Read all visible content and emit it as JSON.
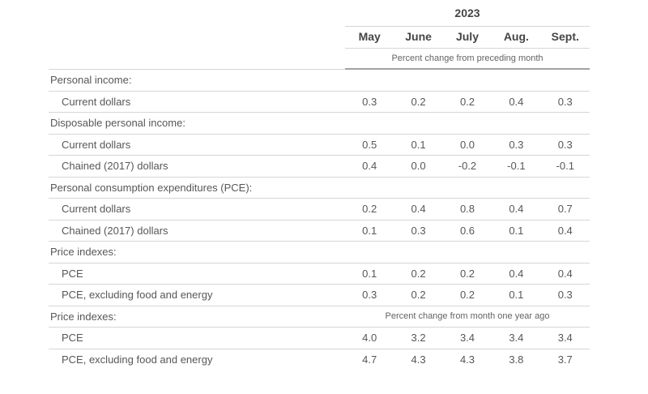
{
  "chart_data": {
    "type": "table",
    "year_header": "2023",
    "columns": [
      "May",
      "June",
      "July",
      "Aug.",
      "Sept."
    ],
    "unit_note_top": "Percent change from preceding month",
    "unit_note_bottom": "Percent change from month one year ago",
    "rows": [
      {
        "type": "category",
        "label": "Personal income:"
      },
      {
        "type": "data",
        "label": "Current dollars",
        "values": [
          "0.3",
          "0.2",
          "0.2",
          "0.4",
          "0.3"
        ]
      },
      {
        "type": "category",
        "label": "Disposable personal income:"
      },
      {
        "type": "data",
        "label": "Current dollars",
        "values": [
          "0.5",
          "0.1",
          "0.0",
          "0.3",
          "0.3"
        ]
      },
      {
        "type": "data",
        "label": "Chained (2017) dollars",
        "values": [
          "0.4",
          "0.0",
          "-0.2",
          "-0.1",
          "-0.1"
        ]
      },
      {
        "type": "category",
        "label": "Personal consumption expenditures (PCE):"
      },
      {
        "type": "data",
        "label": "Current dollars",
        "values": [
          "0.2",
          "0.4",
          "0.8",
          "0.4",
          "0.7"
        ]
      },
      {
        "type": "data",
        "label": "Chained (2017) dollars",
        "values": [
          "0.1",
          "0.3",
          "0.6",
          "0.1",
          "0.4"
        ]
      },
      {
        "type": "category",
        "label": "Price indexes:"
      },
      {
        "type": "data",
        "label": "PCE",
        "values": [
          "0.1",
          "0.2",
          "0.2",
          "0.4",
          "0.4"
        ]
      },
      {
        "type": "data",
        "label": "PCE, excluding food and energy",
        "values": [
          "0.3",
          "0.2",
          "0.2",
          "0.1",
          "0.3"
        ]
      },
      {
        "type": "category",
        "label": "Price indexes:",
        "spanner": "Percent change from month one year ago"
      },
      {
        "type": "data",
        "label": "PCE",
        "values": [
          "4.0",
          "3.2",
          "3.4",
          "3.4",
          "3.4"
        ]
      },
      {
        "type": "data",
        "label": "PCE, excluding food and energy",
        "values": [
          "4.7",
          "4.3",
          "4.3",
          "3.8",
          "3.7"
        ]
      }
    ]
  },
  "colors": {
    "header_text": "#454547",
    "body_text": "#57575a",
    "note_text": "#636366",
    "light_rule": "#d6d6d6",
    "dark_rule": "#a2a2a2",
    "background": "#ffffff"
  }
}
